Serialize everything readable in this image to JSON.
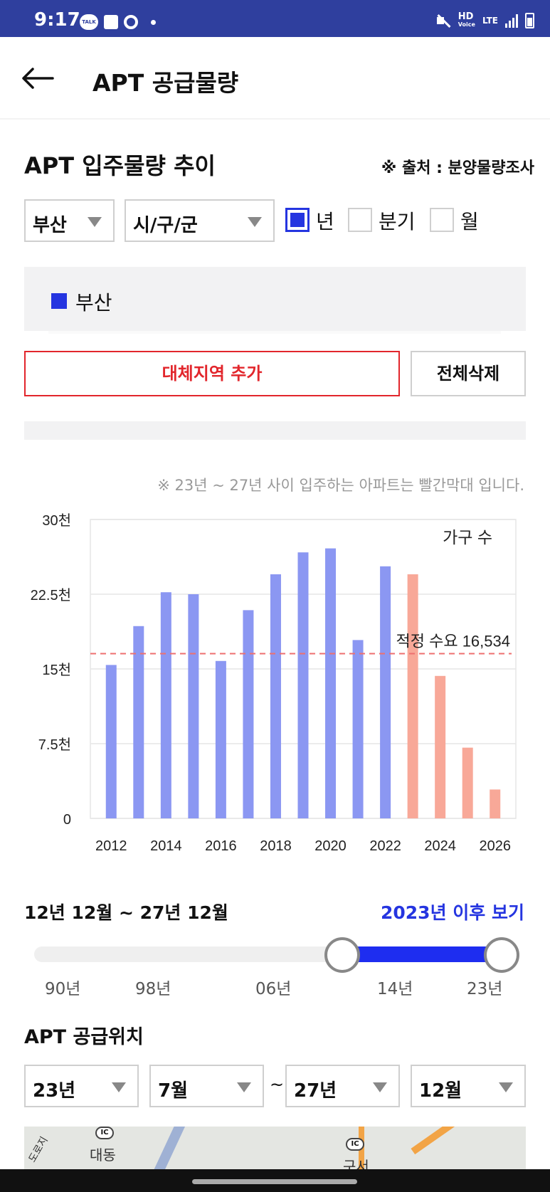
{
  "status": {
    "time": "9:17",
    "talk": "TALK",
    "hd": "HD",
    "hd_sub": "Voice",
    "lte": "LTE"
  },
  "header": {
    "title": "APT 공급물량"
  },
  "section": {
    "title": "APT 입주물량 추이",
    "source": "※ 출처 : 분양물량조사"
  },
  "filters": {
    "region": "부산",
    "district": "시/구/군",
    "period_options": [
      {
        "label": "년",
        "checked": true
      },
      {
        "label": "분기",
        "checked": false
      },
      {
        "label": "월",
        "checked": false
      }
    ]
  },
  "legend": {
    "label": "부산",
    "color": "#2535e0"
  },
  "buttons": {
    "add_region": "대체지역 추가",
    "delete_all": "전체삭제"
  },
  "note": "※ 23년 ~ 27년 사이 입주하는 아파트는 빨간막대 입니다.",
  "chart_data": {
    "type": "bar",
    "ylabel": "가구 수",
    "ylim": [
      0,
      30000
    ],
    "yticks": [
      "0",
      "7.5천",
      "15천",
      "22.5천",
      "30천"
    ],
    "ytick_values": [
      0,
      7500,
      15000,
      22500,
      30000
    ],
    "xticks": [
      "2012",
      "2014",
      "2016",
      "2018",
      "2020",
      "2022",
      "2024",
      "2026"
    ],
    "categories": [
      "2012",
      "2013",
      "2014",
      "2015",
      "2016",
      "2017",
      "2018",
      "2019",
      "2020",
      "2021",
      "2022",
      "2023",
      "2024",
      "2025",
      "2026"
    ],
    "values": [
      15400,
      19300,
      22700,
      22500,
      15800,
      20900,
      24500,
      26700,
      27100,
      17900,
      25300,
      24500,
      14300,
      7100,
      2900
    ],
    "future_from": "2023",
    "colors": {
      "past": "#8b97f2",
      "future": "#f8a898",
      "reference": "#ee6f6f"
    },
    "reference_line": {
      "label": "적정 수요 16,534",
      "value": 16534
    }
  },
  "range": {
    "text": "12년 12월 ~ 27년 12월",
    "link": "2023년 이후 보기",
    "ticks": [
      "90년",
      "98년",
      "06년",
      "14년",
      "23년"
    ]
  },
  "location": {
    "title": "APT 공급위치",
    "from_year": "23년",
    "from_month": "7월",
    "separator": "~",
    "to_year": "27년",
    "to_month": "12월"
  },
  "map": {
    "place1": "대동",
    "place2": "구서",
    "ic": "IC",
    "road": "도로지"
  }
}
